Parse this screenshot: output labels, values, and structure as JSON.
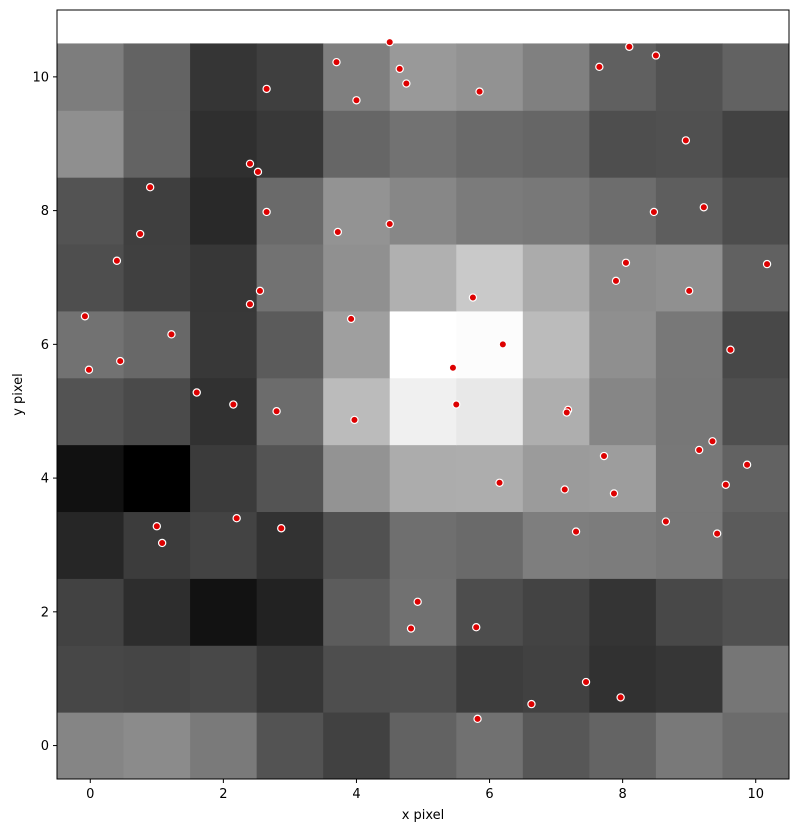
{
  "chart_data": {
    "type": "heatmap",
    "xlabel": "x pixel",
    "ylabel": "y pixel",
    "xlim": [
      -0.5,
      10.5
    ],
    "ylim": [
      -0.5,
      11.0
    ],
    "xticks": [
      0,
      2,
      4,
      6,
      8,
      10
    ],
    "yticks": [
      0,
      2,
      4,
      6,
      8,
      10
    ],
    "colormap": "gray",
    "grid": false,
    "grid_note": "rows listed from y=0 (bottom) to y=10 (top); columns x=0..10; values are gray intensity 0-255",
    "rows": [
      [
        133,
        139,
        122,
        83,
        65,
        98,
        113,
        87,
        100,
        121,
        108
      ],
      [
        71,
        69,
        72,
        55,
        78,
        79,
        61,
        65,
        49,
        54,
        118
      ],
      [
        66,
        45,
        18,
        34,
        92,
        113,
        77,
        67,
        52,
        72,
        80
      ],
      [
        38,
        60,
        67,
        50,
        81,
        111,
        106,
        126,
        124,
        119,
        91
      ],
      [
        17,
        0,
        59,
        84,
        147,
        172,
        173,
        155,
        157,
        120,
        98
      ],
      [
        83,
        74,
        49,
        108,
        187,
        240,
        232,
        174,
        134,
        119,
        79
      ],
      [
        114,
        104,
        56,
        91,
        159,
        255,
        252,
        187,
        143,
        120,
        72
      ],
      [
        78,
        64,
        55,
        114,
        144,
        176,
        201,
        171,
        140,
        144,
        97
      ],
      [
        83,
        63,
        41,
        106,
        147,
        135,
        123,
        120,
        109,
        94,
        77
      ],
      [
        143,
        99,
        47,
        56,
        102,
        114,
        106,
        102,
        78,
        80,
        66
      ],
      [
        125,
        99,
        53,
        63,
        127,
        153,
        146,
        128,
        96,
        82,
        98
      ]
    ],
    "points": [
      [
        4.5,
        10.52
      ],
      [
        3.7,
        10.22
      ],
      [
        4.65,
        10.12
      ],
      [
        4.75,
        9.9
      ],
      [
        2.65,
        9.82
      ],
      [
        4.0,
        9.65
      ],
      [
        5.85,
        9.78
      ],
      [
        7.65,
        10.15
      ],
      [
        8.1,
        10.45
      ],
      [
        8.5,
        10.32
      ],
      [
        8.95,
        9.05
      ],
      [
        2.4,
        8.7
      ],
      [
        2.52,
        8.58
      ],
      [
        0.9,
        8.35
      ],
      [
        2.65,
        7.98
      ],
      [
        0.75,
        7.65
      ],
      [
        3.72,
        7.68
      ],
      [
        4.5,
        7.8
      ],
      [
        8.47,
        7.98
      ],
      [
        9.22,
        8.05
      ],
      [
        0.4,
        7.25
      ],
      [
        2.55,
        6.8
      ],
      [
        2.4,
        6.6
      ],
      [
        5.75,
        6.7
      ],
      [
        7.9,
        6.95
      ],
      [
        8.05,
        7.22
      ],
      [
        9.0,
        6.8
      ],
      [
        10.17,
        7.2
      ],
      [
        -0.08,
        6.42
      ],
      [
        1.22,
        6.15
      ],
      [
        3.92,
        6.38
      ],
      [
        6.2,
        6.0
      ],
      [
        0.45,
        5.75
      ],
      [
        -0.02,
        5.62
      ],
      [
        5.45,
        5.65
      ],
      [
        9.62,
        5.92
      ],
      [
        1.6,
        5.28
      ],
      [
        2.15,
        5.1
      ],
      [
        2.8,
        5.0
      ],
      [
        3.97,
        4.87
      ],
      [
        5.5,
        5.1
      ],
      [
        7.18,
        5.02
      ],
      [
        7.16,
        4.98
      ],
      [
        9.35,
        4.55
      ],
      [
        9.15,
        4.42
      ],
      [
        7.72,
        4.33
      ],
      [
        9.87,
        4.2
      ],
      [
        6.15,
        3.93
      ],
      [
        7.13,
        3.83
      ],
      [
        7.87,
        3.77
      ],
      [
        9.55,
        3.9
      ],
      [
        2.2,
        3.4
      ],
      [
        1.0,
        3.28
      ],
      [
        1.08,
        3.03
      ],
      [
        2.87,
        3.25
      ],
      [
        7.3,
        3.2
      ],
      [
        8.65,
        3.35
      ],
      [
        9.42,
        3.17
      ],
      [
        4.92,
        2.15
      ],
      [
        4.82,
        1.75
      ],
      [
        5.8,
        1.77
      ],
      [
        7.45,
        0.95
      ],
      [
        7.97,
        0.72
      ],
      [
        6.63,
        0.62
      ],
      [
        5.82,
        0.4
      ]
    ],
    "point_style": {
      "fill": "#dd0000",
      "edge": "#ffffff"
    }
  }
}
